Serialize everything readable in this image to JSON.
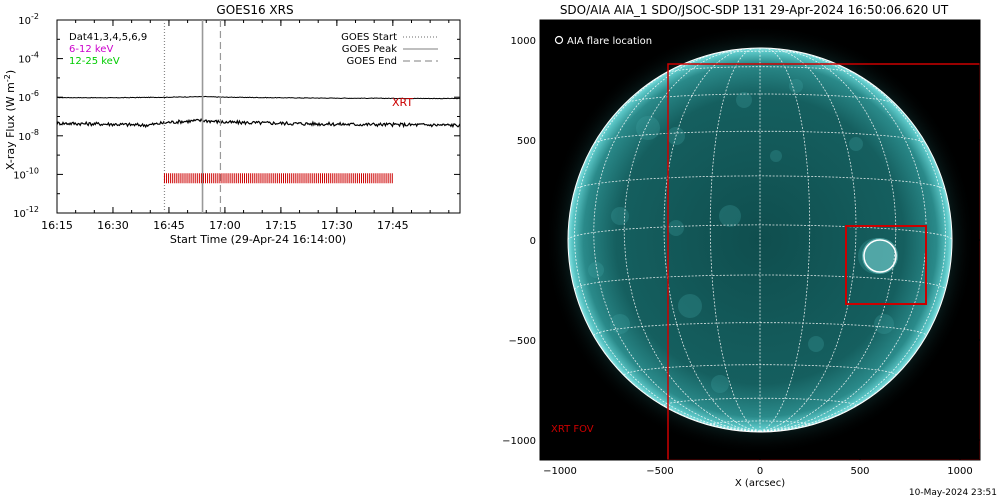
{
  "footer_date": "10-May-2024 23:51",
  "chart_data": [
    {
      "type": "line",
      "title": "GOES16 XRS",
      "xlabel": "Start Time (29-Apr-24 16:14:00)",
      "ylabel": "X-ray Flux (W m",
      "ylabel_sup": "-2",
      "ylabel_close": ")",
      "log_y": true,
      "xlim_minutes": [
        16.25,
        18.05
      ],
      "ylim_exp": [
        -12,
        -2
      ],
      "x_ticks": [
        {
          "label": "16:15",
          "t": 16.25
        },
        {
          "label": "16:30",
          "t": 16.5
        },
        {
          "label": "16:45",
          "t": 16.75
        },
        {
          "label": "17:00",
          "t": 17.0
        },
        {
          "label": "17:15",
          "t": 17.25
        },
        {
          "label": "17:30",
          "t": 17.5
        },
        {
          "label": "17:45",
          "t": 17.75
        }
      ],
      "y_ticks": [
        {
          "base": "10",
          "exp": "-12",
          "e": -12
        },
        {
          "base": "10",
          "exp": "-10",
          "e": -10
        },
        {
          "base": "10",
          "exp": "-8",
          "e": -8
        },
        {
          "base": "10",
          "exp": "-6",
          "e": -6
        },
        {
          "base": "10",
          "exp": "-4",
          "e": -4
        },
        {
          "base": "10",
          "exp": "-2",
          "e": -2
        }
      ],
      "info_lines": [
        {
          "text": "Dat41,3,4,5,6,9",
          "color": "#000000"
        },
        {
          "text": "6-12 keV",
          "color": "#cc00cc"
        },
        {
          "text": "12-25 keV",
          "color": "#00cc00"
        }
      ],
      "legend": [
        {
          "label": "GOES Start",
          "dash": "1,2",
          "color": "#888888"
        },
        {
          "label": "GOES Peak",
          "dash": "",
          "color": "#999999"
        },
        {
          "label": "GOES End",
          "dash": "7,4",
          "color": "#999999"
        }
      ],
      "legend_position": "top-right",
      "series": [
        {
          "color": "#000000",
          "points": [
            [
              16.25,
              -6.02
            ],
            [
              16.5,
              -6.03
            ],
            [
              16.75,
              -6.0
            ],
            [
              16.9,
              -5.97
            ],
            [
              17.0,
              -6.0
            ],
            [
              17.25,
              -6.03
            ],
            [
              17.5,
              -6.05
            ],
            [
              17.75,
              -6.06
            ],
            [
              18.05,
              -6.07
            ]
          ]
        },
        {
          "color": "#000000",
          "points": [
            [
              16.25,
              -7.35
            ],
            [
              16.5,
              -7.4
            ],
            [
              16.65,
              -7.45
            ],
            [
              16.75,
              -7.3
            ],
            [
              16.9,
              -7.2
            ],
            [
              17.0,
              -7.3
            ],
            [
              17.25,
              -7.35
            ],
            [
              17.5,
              -7.4
            ],
            [
              17.75,
              -7.42
            ],
            [
              18.05,
              -7.45
            ]
          ]
        }
      ],
      "goes_start": 16.73,
      "goes_peak": 16.9,
      "goes_end": 16.98,
      "xrt_label": "XRT",
      "xrt_color": "#cc0000",
      "xrt_band": {
        "t_start": 16.73,
        "t_end": 17.75,
        "e_center": -10.2
      }
    },
    {
      "type": "image",
      "title": "SDO/AIA AIA_1 SDO/JSOC-SDP 131 29-Apr-2024 16:50:06.620 UT",
      "xlabel": "X (arcsec)",
      "xlim": [
        -1100,
        1100
      ],
      "ylim": [
        -1100,
        1100
      ],
      "x_ticks": [
        -1000,
        -500,
        0,
        500,
        1000
      ],
      "y_ticks": [
        1000,
        500,
        0,
        -500,
        -1000
      ],
      "solar_radius_arcsec": 960,
      "flare_legend": "AIA flare location",
      "flare_location": {
        "x": 600,
        "y": -80,
        "r": 80
      },
      "fov_label": "XRT FOV",
      "xrt_fov": {
        "x0": -460,
        "x1": 1100,
        "y0": -1100,
        "y1": 880
      },
      "xrt_box": {
        "x0": 430,
        "x1": 830,
        "y0": -320,
        "y1": 70
      },
      "box_color": "#cc0000"
    }
  ]
}
